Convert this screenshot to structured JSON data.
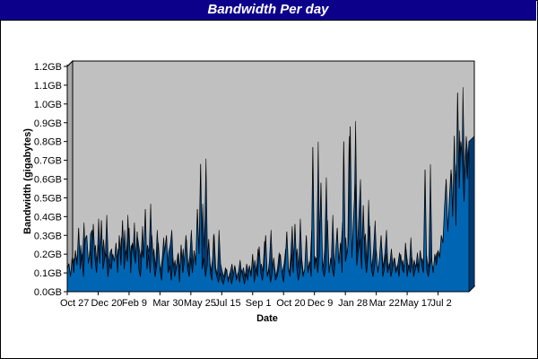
{
  "chart_data": {
    "type": "area",
    "title": "Bandwidth Per day",
    "xlabel": "Date",
    "ylabel": "Bandwidth (gigabytes)",
    "ylim": [
      0,
      1.2
    ],
    "y_tick_values": [
      0,
      0.1,
      0.2,
      0.3,
      0.4,
      0.5,
      0.6,
      0.7,
      0.8,
      0.9,
      1.0,
      1.1,
      1.2
    ],
    "y_tick_labels": [
      "0.0GB",
      "0.1GB",
      "0.2GB",
      "0.3GB",
      "0.4GB",
      "0.5GB",
      "0.6GB",
      "0.7GB",
      "0.8GB",
      "0.9GB",
      "1.0GB",
      "1.1GB",
      "1.2GB"
    ],
    "x_tick_labels": [
      "Oct 27",
      "Dec 20",
      "Feb 9",
      "Mar 30",
      "May 25",
      "Jul 15",
      "Sep 1",
      "Oct 20",
      "Dec 9",
      "Jan 28",
      "Mar 22",
      "May 17",
      "Jul 2"
    ],
    "grid": false,
    "colors": {
      "area": "#0066b3",
      "area_dark": "#003a73",
      "plot_background": "#c0c0c0",
      "title_bar": "#0c008a"
    },
    "series": [
      {
        "values": [
          0.12,
          0.15,
          0.08,
          0.18,
          0.1,
          0.22,
          0.14,
          0.34,
          0.12,
          0.2,
          0.08,
          0.28,
          0.3,
          0.15,
          0.22,
          0.12,
          0.36,
          0.18,
          0.1,
          0.25,
          0.15,
          0.38,
          0.12,
          0.18,
          0.2,
          0.08,
          0.15,
          0.12,
          0.2,
          0.16,
          0.26,
          0.1,
          0.3,
          0.14,
          0.38,
          0.12,
          0.22,
          0.16,
          0.34,
          0.1,
          0.26,
          0.2,
          0.15,
          0.32,
          0.12,
          0.08,
          0.22,
          0.18,
          0.44,
          0.12,
          0.2,
          0.1,
          0.3,
          0.16,
          0.08,
          0.14,
          0.26,
          0.12,
          0.06,
          0.18,
          0.22,
          0.3,
          0.1,
          0.14,
          0.06,
          0.18,
          0.08,
          0.12,
          0.2,
          0.05,
          0.25,
          0.1,
          0.16,
          0.3,
          0.12,
          0.08,
          0.18,
          0.1,
          0.22,
          0.14,
          0.44,
          0.2,
          0.68,
          0.12,
          0.18,
          0.08,
          0.14,
          0.28,
          0.1,
          0.06,
          0.3,
          0.12,
          0.08,
          0.05,
          0.1,
          0.06,
          0.04,
          0.08,
          0.12,
          0.05,
          0.1,
          0.04,
          0.08,
          0.14,
          0.06,
          0.1,
          0.05,
          0.12,
          0.08,
          0.04,
          0.1,
          0.06,
          0.14,
          0.08,
          0.2,
          0.05,
          0.12,
          0.08,
          0.24,
          0.1,
          0.06,
          0.14,
          0.3,
          0.08,
          0.12,
          0.05,
          0.1,
          0.18,
          0.06,
          0.08,
          0.12,
          0.2,
          0.1,
          0.05,
          0.15,
          0.32,
          0.12,
          0.08,
          0.2,
          0.1,
          0.36,
          0.14,
          0.06,
          0.1,
          0.18,
          0.08,
          0.12,
          0.3,
          0.1,
          0.16,
          0.08,
          0.77,
          0.12,
          0.18,
          0.1,
          0.2,
          0.58,
          0.12,
          0.08,
          0.14,
          0.38,
          0.1,
          0.18,
          0.12,
          0.08,
          0.2,
          0.34,
          0.15,
          0.26,
          0.1,
          0.8,
          0.16,
          0.2,
          0.28,
          0.88,
          0.18,
          0.38,
          0.57,
          0.14,
          0.22,
          0.28,
          0.12,
          0.46,
          0.18,
          0.1,
          0.2,
          0.35,
          0.12,
          0.08,
          0.14,
          0.22,
          0.1,
          0.18,
          0.3,
          0.08,
          0.12,
          0.2,
          0.1,
          0.15,
          0.08,
          0.12,
          0.18,
          0.1,
          0.14,
          0.08,
          0.2,
          0.12,
          0.1,
          0.26,
          0.08,
          0.14,
          0.1,
          0.18,
          0.08,
          0.12,
          0.15,
          0.1,
          0.22,
          0.14,
          0.1,
          0.65,
          0.12,
          0.08,
          0.14,
          0.18,
          0.1,
          0.2,
          0.14,
          0.22,
          0.18,
          0.3,
          0.26,
          0.45,
          0.6,
          0.32,
          0.5,
          0.65,
          0.4,
          0.83,
          0.35,
          1.06,
          0.55,
          0.8,
          0.7,
          0.48,
          0.76,
          0.6,
          0.8
        ]
      }
    ]
  }
}
